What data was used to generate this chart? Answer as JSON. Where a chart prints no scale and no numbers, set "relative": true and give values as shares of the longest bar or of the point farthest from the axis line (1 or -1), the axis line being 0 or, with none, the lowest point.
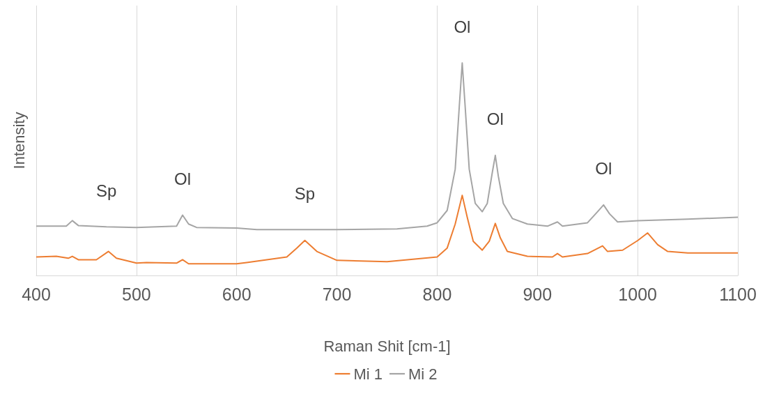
{
  "chart_data": {
    "type": "line",
    "relative": true,
    "xlabel": "Raman Shit [cm-1]",
    "ylabel": "Intensity",
    "xlim": [
      400,
      1100
    ],
    "xticks": [
      400,
      500,
      600,
      700,
      800,
      900,
      1000,
      1100
    ],
    "grid": "x",
    "legend": "bottom",
    "marker": "none",
    "line_style": "solid",
    "series": [
      {
        "name": "Mi 1",
        "color": "#ed7d31",
        "x": [
          400,
          420,
          432,
          436,
          442,
          460,
          472,
          480,
          500,
          510,
          540,
          546,
          552,
          600,
          610,
          650,
          660,
          668,
          680,
          700,
          750,
          800,
          810,
          818,
          825,
          830,
          836,
          845,
          852,
          858,
          863,
          870,
          890,
          915,
          920,
          925,
          950,
          965,
          970,
          985,
          1000,
          1010,
          1020,
          1030,
          1050,
          1100
        ],
        "values": [
          0.087,
          0.09,
          0.081,
          0.09,
          0.074,
          0.074,
          0.113,
          0.081,
          0.058,
          0.061,
          0.058,
          0.074,
          0.055,
          0.055,
          0.061,
          0.087,
          0.129,
          0.165,
          0.113,
          0.071,
          0.065,
          0.087,
          0.129,
          0.242,
          0.377,
          0.274,
          0.161,
          0.119,
          0.161,
          0.245,
          0.177,
          0.113,
          0.09,
          0.087,
          0.103,
          0.087,
          0.103,
          0.139,
          0.113,
          0.119,
          0.164,
          0.2,
          0.145,
          0.113,
          0.106,
          0.106
        ]
      },
      {
        "name": "Mi 2",
        "color": "#a5a5a5",
        "x": [
          400,
          430,
          436,
          442,
          470,
          500,
          540,
          546,
          552,
          560,
          600,
          620,
          650,
          668,
          700,
          760,
          790,
          800,
          810,
          818,
          822,
          825,
          828,
          832,
          838,
          845,
          850,
          855,
          858,
          861,
          866,
          875,
          890,
          910,
          920,
          925,
          950,
          960,
          966,
          972,
          980,
          1000,
          1050,
          1100
        ],
        "values": [
          0.232,
          0.232,
          0.258,
          0.235,
          0.229,
          0.226,
          0.232,
          0.284,
          0.242,
          0.226,
          0.223,
          0.216,
          0.216,
          0.216,
          0.216,
          0.219,
          0.232,
          0.248,
          0.306,
          0.5,
          0.79,
          1,
          0.79,
          0.5,
          0.339,
          0.3,
          0.339,
          0.484,
          0.565,
          0.468,
          0.339,
          0.268,
          0.242,
          0.232,
          0.252,
          0.232,
          0.248,
          0.3,
          0.332,
          0.29,
          0.252,
          0.258,
          0.265,
          0.274
        ]
      }
    ],
    "annotations": [
      {
        "text": "Sp",
        "x": 470,
        "y": 0.229
      },
      {
        "text": "Ol",
        "x": 546,
        "y": 0.284
      },
      {
        "text": "Sp",
        "x": 668,
        "y": 0.216
      },
      {
        "text": "Ol",
        "x": 825,
        "y": 1
      },
      {
        "text": "Ol",
        "x": 858,
        "y": 0.565
      },
      {
        "text": "Ol",
        "x": 966,
        "y": 0.332
      }
    ]
  }
}
